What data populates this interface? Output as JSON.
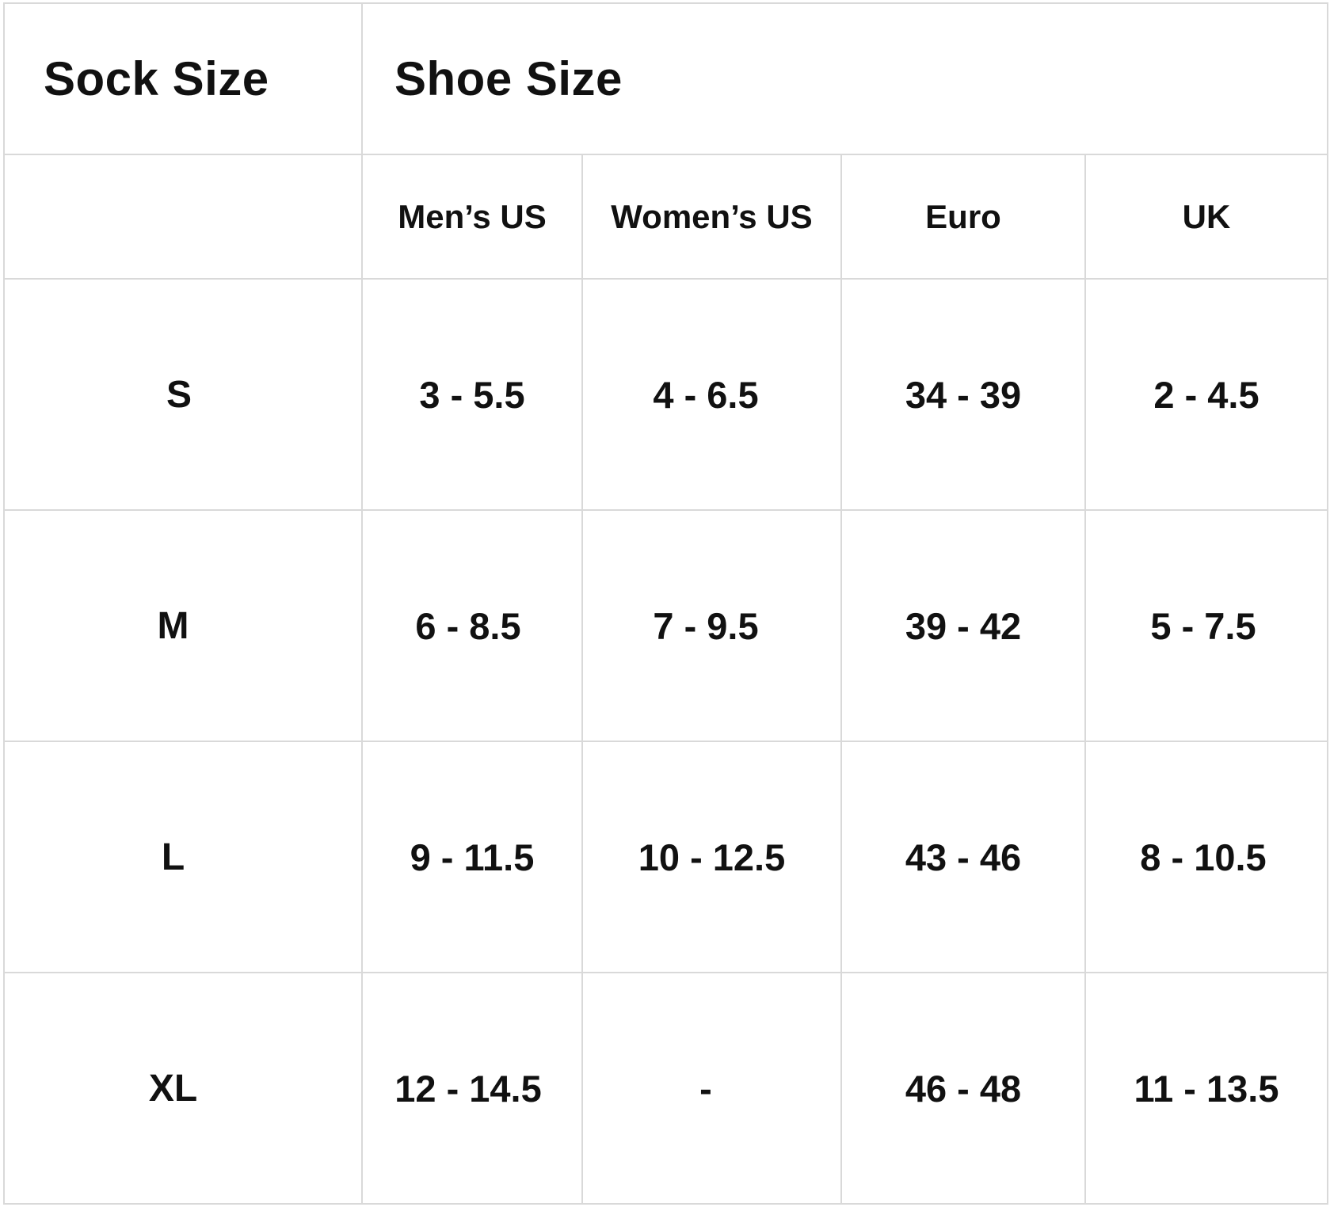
{
  "header": {
    "sock_size": "Sock Size",
    "shoe_size": "Shoe Size"
  },
  "columns": [
    "Men’s US",
    "Women’s US",
    "Euro",
    "UK"
  ],
  "rows": [
    {
      "size": "S",
      "values": [
        "3 - 5.5",
        "4 - 6.5",
        "34 - 39",
        "2 - 4.5"
      ]
    },
    {
      "size": "M",
      "values": [
        "6 - 8.5",
        "7 - 9.5",
        "39 - 42",
        "5 - 7.5"
      ]
    },
    {
      "size": "L",
      "values": [
        "9 - 11.5",
        "10 - 12.5",
        "43 - 46",
        "8 - 10.5"
      ]
    },
    {
      "size": "XL",
      "values": [
        "12 - 14.5",
        "-",
        "46 - 48",
        "11 - 13.5"
      ]
    }
  ]
}
